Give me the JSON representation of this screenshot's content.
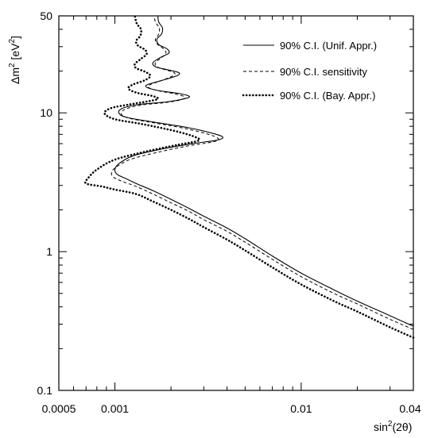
{
  "chart_data": {
    "type": "line",
    "xlabel_base": "sin",
    "xlabel_sup": "2",
    "xlabel_tail": "(2θ)",
    "ylabel_base": "Δm",
    "ylabel_sup": "2",
    "ylabel_mid": " [eV",
    "ylabel_sup2": "2",
    "ylabel_tail": "]",
    "x_scale": "log",
    "y_scale": "log",
    "xlim": [
      0.0005,
      0.04
    ],
    "ylim": [
      0.1,
      50
    ],
    "xticks": [
      {
        "value": 0.0005,
        "label": "0.0005"
      },
      {
        "value": 0.001,
        "label": "0.001"
      },
      {
        "value": 0.01,
        "label": "0.01"
      },
      {
        "value": 0.04,
        "label": "0.04"
      }
    ],
    "yticks": [
      {
        "value": 0.1,
        "label": "0.1"
      },
      {
        "value": 1,
        "label": "1"
      },
      {
        "value": 10,
        "label": "10"
      },
      {
        "value": 50,
        "label": "50"
      }
    ],
    "legend_position": "top-right",
    "series": [
      {
        "name": "90% C.I.  (Unif. Appr.)",
        "style": "solid",
        "points": [
          [
            0.04,
            0.29
          ],
          [
            0.03,
            0.345
          ],
          [
            0.02,
            0.44
          ],
          [
            0.015,
            0.53
          ],
          [
            0.01,
            0.7
          ],
          [
            0.007,
            0.93
          ],
          [
            0.005,
            1.24
          ],
          [
            0.004,
            1.48
          ],
          [
            0.003,
            1.8
          ],
          [
            0.0025,
            2.05
          ],
          [
            0.002,
            2.38
          ],
          [
            0.0016,
            2.75
          ],
          [
            0.0013,
            3.1
          ],
          [
            0.00115,
            3.35
          ],
          [
            0.00103,
            3.6
          ],
          [
            0.001,
            3.9
          ],
          [
            0.00105,
            4.3
          ],
          [
            0.00125,
            4.9
          ],
          [
            0.0018,
            5.5
          ],
          [
            0.0026,
            6.0
          ],
          [
            0.0034,
            6.3
          ],
          [
            0.0038,
            6.6
          ],
          [
            0.0035,
            7.0
          ],
          [
            0.0025,
            7.8
          ],
          [
            0.0016,
            8.6
          ],
          [
            0.00115,
            9.3
          ],
          [
            0.00105,
            10.0
          ],
          [
            0.0011,
            10.8
          ],
          [
            0.00135,
            11.5
          ],
          [
            0.0019,
            12.0
          ],
          [
            0.0024,
            12.7
          ],
          [
            0.0025,
            13.2
          ],
          [
            0.0022,
            13.8
          ],
          [
            0.0017,
            14.5
          ],
          [
            0.00148,
            15.3
          ],
          [
            0.0015,
            16.0
          ],
          [
            0.00175,
            17.0
          ],
          [
            0.00215,
            18.5
          ],
          [
            0.0022,
            19.5
          ],
          [
            0.0019,
            20.5
          ],
          [
            0.00165,
            21.5
          ],
          [
            0.0016,
            23.0
          ],
          [
            0.00175,
            25.0
          ],
          [
            0.00195,
            27.0
          ],
          [
            0.0019,
            29.0
          ],
          [
            0.00172,
            31.0
          ],
          [
            0.00168,
            34.0
          ],
          [
            0.00178,
            37.0
          ],
          [
            0.0018,
            41.0
          ],
          [
            0.00172,
            45.0
          ],
          [
            0.0017,
            50.0
          ]
        ]
      },
      {
        "name": "90% C.I.  sensitivity",
        "style": "dashed",
        "points": [
          [
            0.04,
            0.275
          ],
          [
            0.03,
            0.325
          ],
          [
            0.02,
            0.42
          ],
          [
            0.015,
            0.5
          ],
          [
            0.01,
            0.66
          ],
          [
            0.007,
            0.88
          ],
          [
            0.005,
            1.17
          ],
          [
            0.004,
            1.4
          ],
          [
            0.003,
            1.7
          ],
          [
            0.0025,
            1.95
          ],
          [
            0.002,
            2.25
          ],
          [
            0.0016,
            2.6
          ],
          [
            0.0013,
            2.95
          ],
          [
            0.0011,
            3.2
          ],
          [
            0.00098,
            3.45
          ],
          [
            0.00096,
            3.7
          ],
          [
            0.001,
            4.0
          ],
          [
            0.0012,
            4.6
          ],
          [
            0.0017,
            5.2
          ],
          [
            0.0025,
            5.8
          ],
          [
            0.0032,
            6.1
          ],
          [
            0.0036,
            6.4
          ],
          [
            0.0033,
            6.9
          ],
          [
            0.0024,
            7.7
          ],
          [
            0.0016,
            8.5
          ],
          [
            0.00117,
            9.2
          ],
          [
            0.00108,
            9.9
          ],
          [
            0.00115,
            10.7
          ],
          [
            0.0014,
            11.4
          ],
          [
            0.0019,
            11.9
          ],
          [
            0.0023,
            12.5
          ],
          [
            0.00235,
            13.1
          ],
          [
            0.0021,
            13.7
          ],
          [
            0.00172,
            14.4
          ],
          [
            0.00152,
            15.2
          ],
          [
            0.00155,
            16.0
          ],
          [
            0.0018,
            17.2
          ],
          [
            0.00205,
            18.5
          ],
          [
            0.00208,
            19.5
          ],
          [
            0.00185,
            20.5
          ],
          [
            0.00168,
            21.5
          ],
          [
            0.00165,
            23.0
          ],
          [
            0.00178,
            25.0
          ],
          [
            0.00188,
            27.0
          ],
          [
            0.00182,
            29.0
          ],
          [
            0.00168,
            31.5
          ],
          [
            0.00165,
            34.0
          ],
          [
            0.00172,
            37.0
          ],
          [
            0.00173,
            41.0
          ],
          [
            0.00165,
            45.0
          ],
          [
            0.00163,
            50.0
          ]
        ]
      },
      {
        "name": "90% C.I.  (Bay. Appr.)",
        "style": "dotted",
        "points": [
          [
            0.04,
            0.24
          ],
          [
            0.03,
            0.285
          ],
          [
            0.02,
            0.37
          ],
          [
            0.015,
            0.44
          ],
          [
            0.01,
            0.58
          ],
          [
            0.007,
            0.77
          ],
          [
            0.005,
            1.02
          ],
          [
            0.004,
            1.22
          ],
          [
            0.003,
            1.5
          ],
          [
            0.0025,
            1.72
          ],
          [
            0.002,
            2.0
          ],
          [
            0.0016,
            2.3
          ],
          [
            0.0013,
            2.6
          ],
          [
            0.001,
            2.8
          ],
          [
            0.00085,
            2.95
          ],
          [
            0.0007,
            3.1
          ],
          [
            0.00072,
            3.4
          ],
          [
            0.0008,
            3.9
          ],
          [
            0.001,
            4.6
          ],
          [
            0.0015,
            5.3
          ],
          [
            0.0022,
            5.9
          ],
          [
            0.0028,
            6.3
          ],
          [
            0.0027,
            6.7
          ],
          [
            0.0021,
            7.4
          ],
          [
            0.0014,
            8.3
          ],
          [
            0.001,
            9.0
          ],
          [
            0.00088,
            9.9
          ],
          [
            0.00095,
            10.8
          ],
          [
            0.0012,
            11.5
          ],
          [
            0.0015,
            12.1
          ],
          [
            0.0017,
            12.6
          ],
          [
            0.0016,
            13.2
          ],
          [
            0.0013,
            14.0
          ],
          [
            0.00118,
            15.0
          ],
          [
            0.00125,
            16.0
          ],
          [
            0.00145,
            17.2
          ],
          [
            0.00155,
            18.5
          ],
          [
            0.00145,
            19.8
          ],
          [
            0.0013,
            21.0
          ],
          [
            0.00128,
            22.5
          ],
          [
            0.00138,
            24.5
          ],
          [
            0.00148,
            26.5
          ],
          [
            0.00145,
            28.5
          ],
          [
            0.00133,
            30.5
          ],
          [
            0.0013,
            33.0
          ],
          [
            0.00137,
            36.0
          ],
          [
            0.00138,
            40.0
          ],
          [
            0.00131,
            44.0
          ],
          [
            0.00128,
            50.0
          ]
        ]
      }
    ]
  }
}
